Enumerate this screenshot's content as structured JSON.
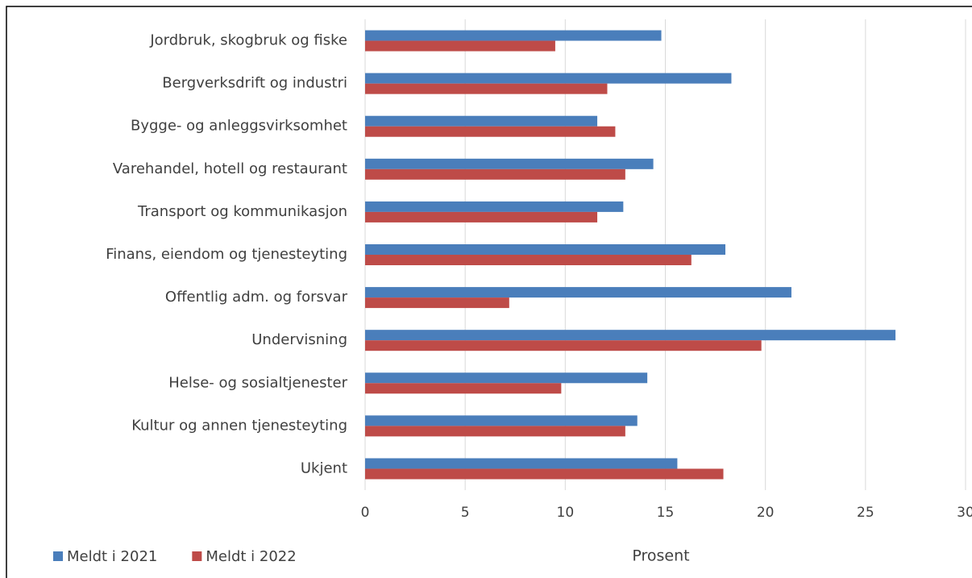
{
  "chart_data": {
    "type": "barh",
    "categories": [
      "Jordbruk, skogbruk og fiske",
      "Bergverksdrift og industri",
      "Bygge- og anleggsvirksomhet",
      "Varehandel, hotell og restaurant",
      "Transport og kommunikasjon",
      "Finans, eiendom og tjenesteyting",
      "Offentlig adm. og forsvar",
      "Undervisning",
      "Helse- og sosialtjenester",
      "Kultur og annen tjenesteyting",
      "Ukjent"
    ],
    "series": [
      {
        "name": "Meldt i 2021",
        "color": "#4a7ebb",
        "values": [
          14.8,
          18.3,
          11.6,
          14.4,
          12.9,
          18.0,
          21.3,
          26.5,
          14.1,
          13.6,
          15.6
        ]
      },
      {
        "name": "Meldt i 2022",
        "color": "#be4b48",
        "values": [
          9.5,
          12.1,
          12.5,
          13.0,
          11.6,
          16.3,
          7.2,
          19.8,
          9.8,
          13.0,
          17.9
        ]
      }
    ],
    "xlabel": "Prosent",
    "xlim": [
      0,
      30
    ],
    "xticks": [
      0,
      5,
      10,
      15,
      20,
      25,
      30
    ],
    "grid": true,
    "legend": "bottom-left"
  }
}
